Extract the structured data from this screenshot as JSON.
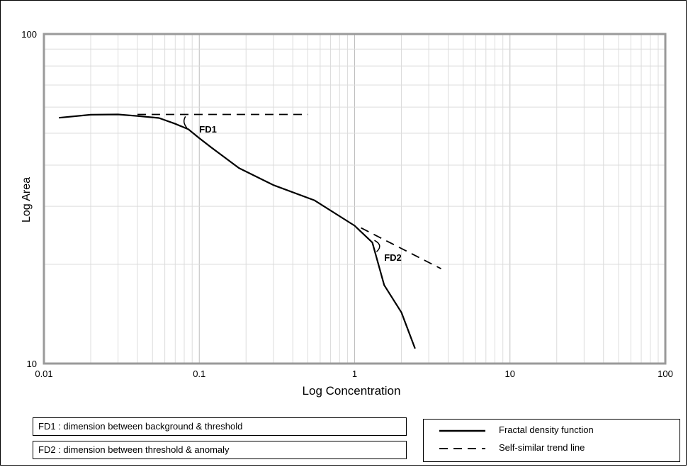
{
  "chart_data": {
    "type": "line",
    "xlabel": "Log Concentration",
    "ylabel": "Log Area",
    "xscale": "log",
    "yscale": "log",
    "xlim": [
      0.01,
      100
    ],
    "ylim": [
      10,
      100
    ],
    "x_ticks": [
      "0.01",
      "0.1",
      "1",
      "10",
      "100"
    ],
    "y_ticks": [
      "10",
      "100"
    ],
    "grid": true,
    "series": [
      {
        "name": "Fractal density function",
        "style": "solid",
        "points": [
          [
            0.0125,
            55.7
          ],
          [
            0.02,
            56.9
          ],
          [
            0.03,
            57.0
          ],
          [
            0.04,
            56.4
          ],
          [
            0.055,
            55.6
          ],
          [
            0.07,
            53.4
          ],
          [
            0.085,
            51.4
          ],
          [
            0.1,
            48.3
          ],
          [
            0.12,
            45.2
          ],
          [
            0.18,
            39.2
          ],
          [
            0.3,
            34.8
          ],
          [
            0.55,
            31.3
          ],
          [
            1.0,
            26.2
          ],
          [
            1.3,
            23.3
          ],
          [
            1.55,
            17.3
          ],
          [
            2.0,
            14.3
          ],
          [
            2.45,
            11.1
          ]
        ]
      },
      {
        "name": "Self-similar trend line",
        "style": "dashed",
        "points": [
          [
            0.04,
            57.0
          ],
          [
            0.5,
            57.0
          ]
        ]
      },
      {
        "name": "Self-similar trend line",
        "style": "dashed",
        "points": [
          [
            1.1,
            25.8
          ],
          [
            3.6,
            19.4
          ]
        ]
      }
    ],
    "annotations": [
      {
        "text": "FD1",
        "x": 0.1,
        "y": 51.5
      },
      {
        "text": "FD2",
        "x": 1.55,
        "y": 21.0
      }
    ],
    "notes": [
      "FD1 : dimension between background & threshold",
      "FD2 : dimension between threshold & anomaly"
    ],
    "legend": [
      "Fractal density function",
      "Self-similar trend line"
    ],
    "legend_position": "bottom-right"
  }
}
